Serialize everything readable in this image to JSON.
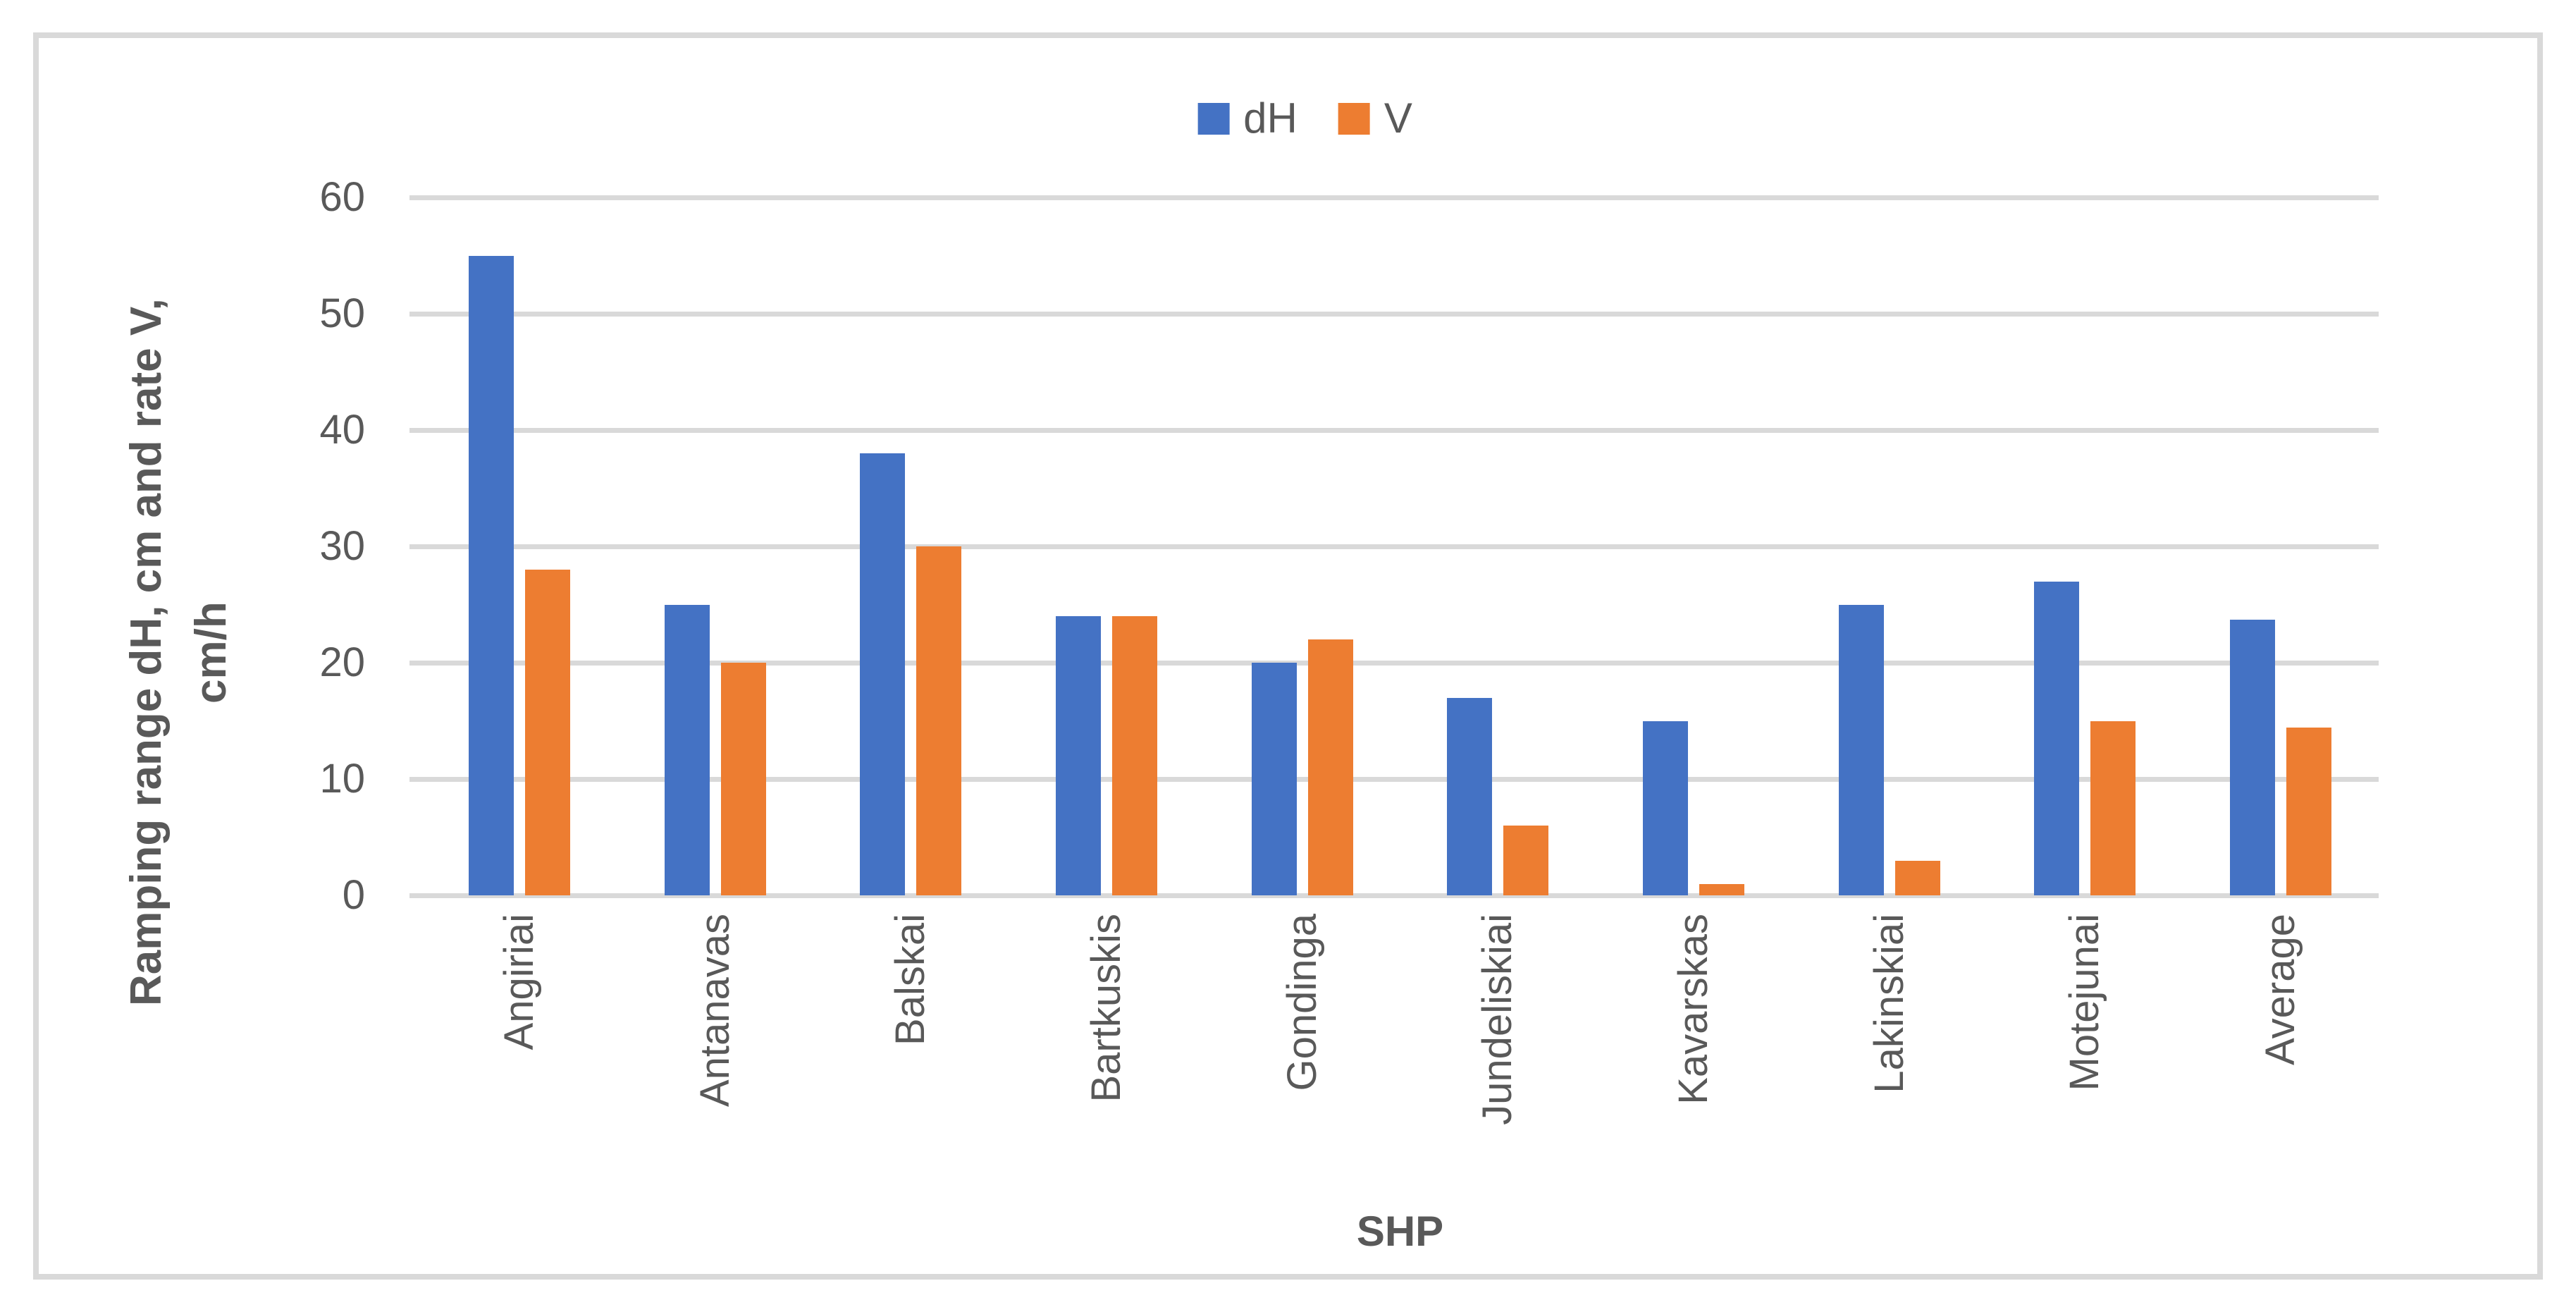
{
  "figure": {
    "background": "#FFFFFF",
    "border_color": "#D9D9D9"
  },
  "legend": {
    "position": "top-center",
    "items": [
      {
        "label": "dH",
        "color": "#4472C4"
      },
      {
        "label": "V",
        "color": "#ED7D31"
      }
    ]
  },
  "axes": {
    "x_title": "SHP",
    "y_title_line1": "Ramping range dH, cm and rate V,",
    "y_title_line2": "cm/h",
    "tick_color": "#D9D9D9",
    "gridline_color": "#D9D9D9",
    "text_color": "#595959"
  },
  "chart_data": {
    "type": "bar",
    "title": "",
    "xlabel": "SHP",
    "ylabel": "Ramping range dH, cm and rate V, cm/h",
    "categories": [
      "Angiriai",
      "Antanavas",
      "Balskai",
      "Bartkuskis",
      "Gondinga",
      "Jundeliskiai",
      "Kavarskas",
      "Lakinskiai",
      "Motejunai",
      "Average"
    ],
    "series": [
      {
        "name": "dH",
        "color": "#4472C4",
        "values": [
          55,
          25,
          38,
          24,
          20,
          17,
          15,
          25,
          27,
          23.7
        ]
      },
      {
        "name": "V",
        "color": "#ED7D31",
        "values": [
          28,
          20,
          30,
          24,
          22,
          6,
          1,
          3,
          15,
          14.4
        ]
      }
    ],
    "ylim": [
      0,
      60
    ],
    "yticks": [
      0,
      10,
      20,
      30,
      40,
      50,
      60
    ],
    "grid": true,
    "legend_position": "top-center"
  }
}
